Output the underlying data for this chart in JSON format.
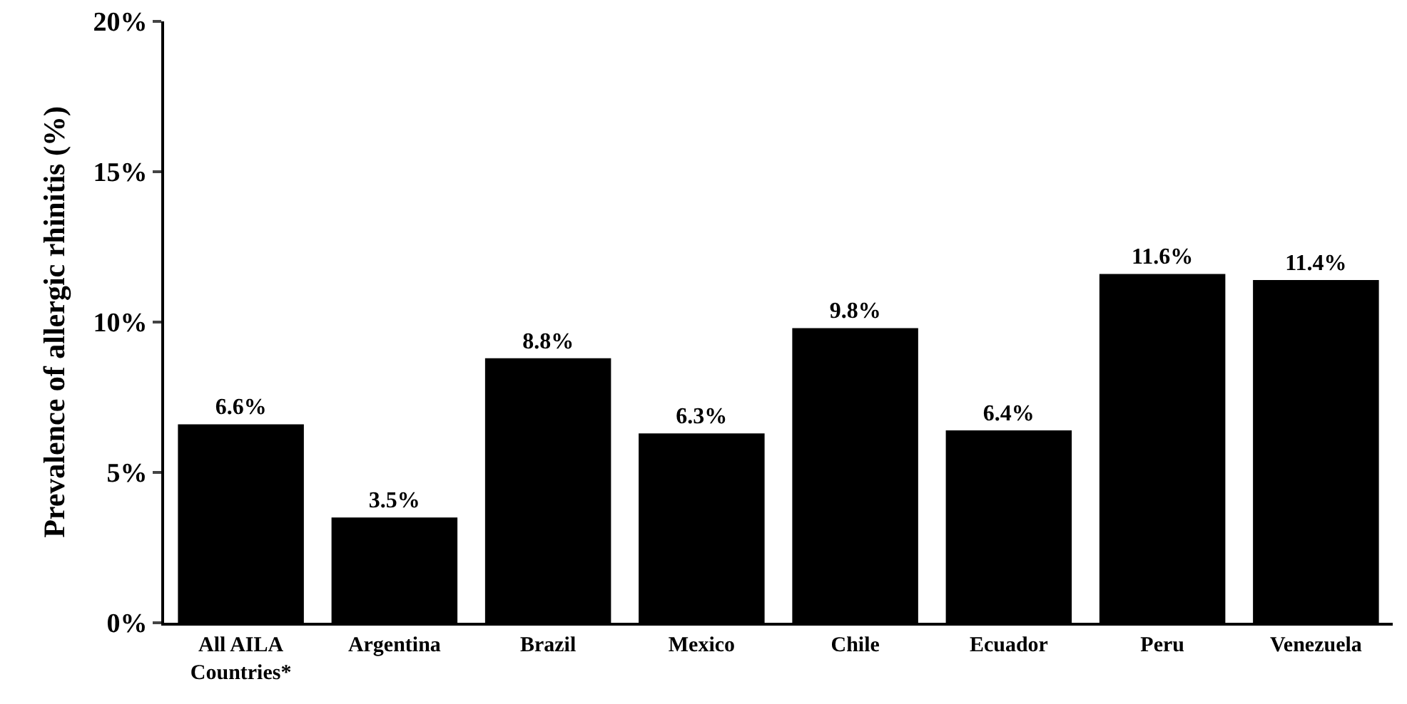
{
  "chart_data": {
    "type": "bar",
    "ylabel": "Prevalence of allergic rhinitis (%)",
    "categories": [
      "All AILA Countries*",
      "Argentina",
      "Brazil",
      "Mexico",
      "Chile",
      "Ecuador",
      "Peru",
      "Venezuela"
    ],
    "values": [
      6.6,
      3.5,
      8.8,
      6.3,
      9.8,
      6.4,
      11.6,
      11.4
    ],
    "value_labels": [
      "6.6%",
      "3.5%",
      "8.8%",
      "6.3%",
      "9.8%",
      "6.4%",
      "11.6%",
      "11.4%"
    ],
    "color": "#000000",
    "ylim": [
      0,
      20
    ],
    "yticks": [
      {
        "value": 0,
        "label": "0%"
      },
      {
        "value": 5,
        "label": "5%"
      },
      {
        "value": 10,
        "label": "10%"
      },
      {
        "value": 15,
        "label": "15%"
      },
      {
        "value": 20,
        "label": "20%"
      }
    ],
    "grid": false
  }
}
